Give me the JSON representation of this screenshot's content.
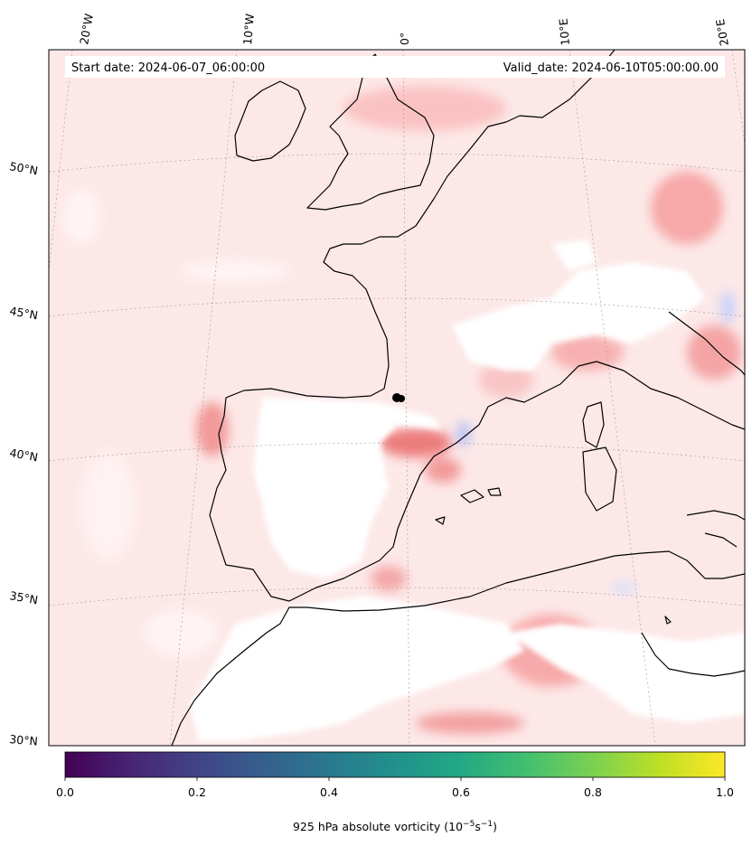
{
  "header": {
    "start_date": "Start date: 2024-06-07_06:00:00",
    "valid_date": "Valid_date: 2024-06-10T05:00:00.00"
  },
  "map": {
    "longitude_labels": [
      "20°W",
      "10°W",
      "0°",
      "10°E",
      "20°E"
    ],
    "latitude_labels": [
      "50°N",
      "45°N",
      "40°N",
      "35°N",
      "30°N"
    ],
    "field": "925 hPa absolute vorticity",
    "colors": {
      "positive_light": "#fde6e6",
      "positive_mid": "#fbb8b8",
      "positive_strong": "#f07878",
      "negative": "#c8d0fa",
      "coast": "#000000"
    }
  },
  "colorbar": {
    "colormap": "viridis",
    "tick_labels": [
      "0.0",
      "0.2",
      "0.4",
      "0.6",
      "0.8",
      "1.0"
    ],
    "label_main": "925 hPa absolute vorticity (10",
    "label_exp1": "−5",
    "label_mid": "s",
    "label_exp2": "−1",
    "label_end": ")"
  }
}
